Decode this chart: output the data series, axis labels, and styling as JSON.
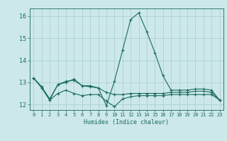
{
  "title": "",
  "xlabel": "Humidex (Indice chaleur)",
  "background_color": "#cce8e8",
  "grid_color": "#aacccc",
  "line_color": "#1a6b5a",
  "xlim": [
    -0.5,
    23.5
  ],
  "ylim": [
    11.75,
    16.35
  ],
  "yticks": [
    12,
    13,
    14,
    15,
    16
  ],
  "xticks": [
    0,
    1,
    2,
    3,
    4,
    5,
    6,
    7,
    8,
    9,
    10,
    11,
    12,
    13,
    14,
    15,
    16,
    17,
    18,
    19,
    20,
    21,
    22,
    23
  ],
  "series1_x": [
    0,
    1,
    2,
    3,
    4,
    5,
    6,
    7,
    8,
    9,
    10,
    11,
    12,
    13,
    14,
    15,
    16,
    17,
    18,
    19,
    20,
    21,
    22,
    23
  ],
  "series1_y": [
    13.2,
    12.8,
    12.2,
    12.9,
    13.0,
    13.15,
    12.85,
    12.85,
    12.75,
    11.95,
    13.05,
    14.45,
    15.85,
    16.15,
    15.3,
    14.35,
    13.3,
    12.65,
    12.65,
    12.65,
    12.7,
    12.7,
    12.65,
    12.2
  ],
  "series2_x": [
    0,
    1,
    2,
    3,
    4,
    5,
    6,
    7,
    8,
    9,
    10,
    11,
    12,
    13,
    14,
    15,
    16,
    17,
    18,
    19,
    20,
    21,
    22,
    23
  ],
  "series2_y": [
    13.2,
    12.8,
    12.25,
    12.9,
    13.05,
    13.1,
    12.85,
    12.8,
    12.75,
    12.55,
    12.45,
    12.45,
    12.5,
    12.5,
    12.5,
    12.5,
    12.5,
    12.55,
    12.55,
    12.55,
    12.6,
    12.6,
    12.55,
    12.2
  ],
  "series3_x": [
    0,
    1,
    2,
    3,
    4,
    5,
    6,
    7,
    8,
    9,
    10,
    11,
    12,
    13,
    14,
    15,
    16,
    17,
    18,
    19,
    20,
    21,
    22,
    23
  ],
  "series3_y": [
    13.2,
    12.75,
    12.2,
    12.5,
    12.65,
    12.5,
    12.4,
    12.45,
    12.45,
    12.15,
    11.9,
    12.25,
    12.35,
    12.4,
    12.4,
    12.4,
    12.4,
    12.45,
    12.45,
    12.45,
    12.45,
    12.45,
    12.45,
    12.2
  ]
}
